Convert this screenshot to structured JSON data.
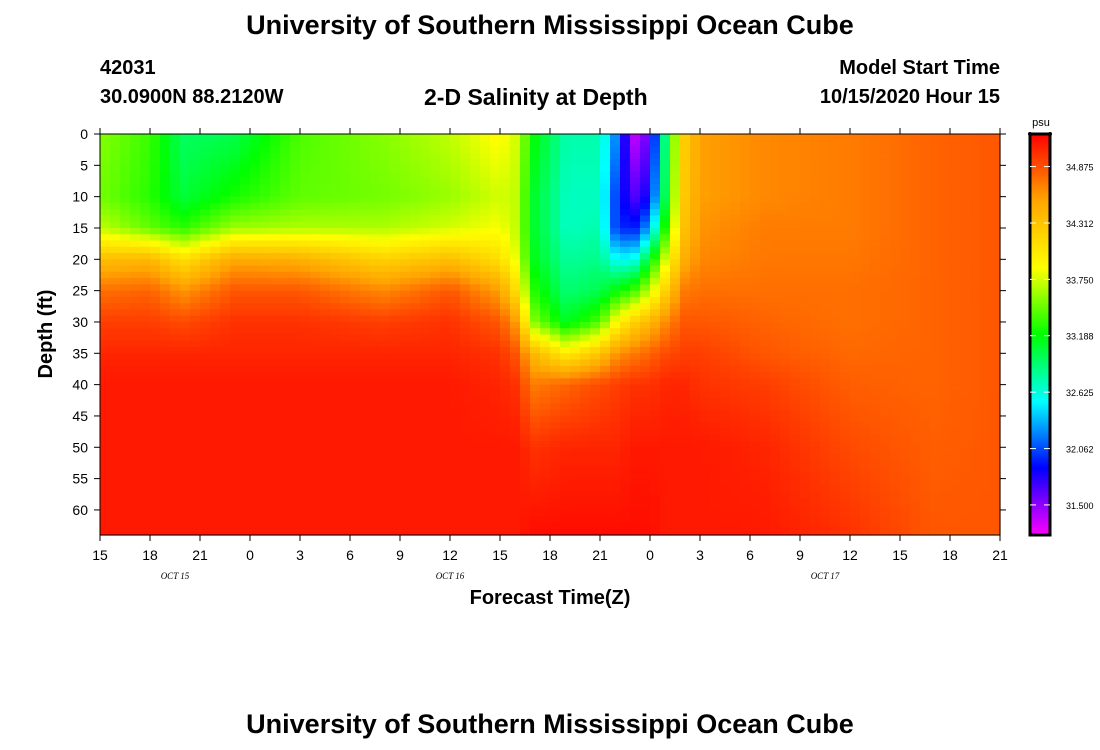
{
  "header": {
    "title": "University of Southern Mississippi Ocean Cube",
    "station_id": "42031",
    "station_coords": "30.0900N 88.2120W",
    "model_label": "Model Start Time",
    "model_time": "10/15/2020 Hour 15"
  },
  "footer": {
    "title": "University of Southern Mississippi Ocean Cube"
  },
  "colors": {
    "palette": [
      "#ff00ff",
      "#0000ff",
      "#00ffff",
      "#00ff00",
      "#ffff00",
      "#ffa500",
      "#ff0000"
    ],
    "frame": "#000000"
  },
  "chart_data": {
    "type": "heatmap",
    "title": "2-D Salinity at Depth",
    "xlabel": "Forecast Time(Z)",
    "ylabel": "Depth (ft)",
    "x_ticks": [
      "15",
      "18",
      "21",
      "0",
      "3",
      "6",
      "9",
      "12",
      "15",
      "18",
      "21",
      "0",
      "3",
      "6",
      "9",
      "12",
      "15",
      "18",
      "21"
    ],
    "date_labels": [
      {
        "label": "OCT 15",
        "tick_index": 1.5
      },
      {
        "label": "OCT 16",
        "tick_index": 7
      },
      {
        "label": "OCT 17",
        "tick_index": 14.5
      }
    ],
    "y_ticks": [
      0,
      5,
      10,
      15,
      20,
      25,
      30,
      35,
      40,
      45,
      50,
      55,
      60
    ],
    "ylim": [
      0,
      64
    ],
    "x_range_hours": [
      0,
      54
    ],
    "colorbar": {
      "unit": "psu",
      "range": [
        31.2,
        35.2
      ],
      "ticks": [
        "34.875",
        "34.312",
        "33.750",
        "33.188",
        "32.625",
        "32.062",
        "31.500"
      ]
    },
    "depths": [
      0,
      10,
      15,
      20,
      25,
      30,
      35,
      40,
      50,
      64
    ],
    "columns": [
      {
        "hour": 0,
        "values": [
          33.55,
          33.5,
          33.7,
          34.35,
          34.75,
          34.95,
          35.05,
          35.1,
          35.1,
          35.1
        ]
      },
      {
        "hour": 3,
        "values": [
          33.35,
          33.3,
          33.45,
          34.4,
          34.8,
          34.95,
          35.05,
          35.1,
          35.1,
          35.1
        ]
      },
      {
        "hour": 5,
        "values": [
          32.95,
          33.05,
          33.3,
          34.1,
          34.6,
          34.9,
          35.05,
          35.1,
          35.1,
          35.1
        ]
      },
      {
        "hour": 8,
        "values": [
          33.0,
          33.25,
          33.6,
          34.5,
          34.85,
          35.0,
          35.05,
          35.1,
          35.1,
          35.1
        ]
      },
      {
        "hour": 12,
        "values": [
          33.4,
          33.45,
          33.65,
          34.45,
          34.85,
          35.0,
          35.05,
          35.1,
          35.1,
          35.1
        ]
      },
      {
        "hour": 17,
        "values": [
          33.55,
          33.5,
          33.65,
          34.2,
          34.65,
          34.95,
          35.05,
          35.1,
          35.1,
          35.1
        ]
      },
      {
        "hour": 21,
        "values": [
          33.7,
          33.6,
          33.75,
          34.35,
          34.85,
          35.0,
          35.05,
          35.1,
          35.1,
          35.1
        ]
      },
      {
        "hour": 24,
        "values": [
          33.9,
          33.75,
          33.85,
          34.1,
          34.55,
          34.85,
          35.0,
          35.05,
          35.1,
          35.1
        ]
      },
      {
        "hour": 25,
        "values": [
          33.75,
          33.7,
          33.7,
          33.8,
          34.1,
          34.55,
          34.85,
          35.0,
          35.1,
          35.1
        ]
      },
      {
        "hour": 26,
        "values": [
          33.2,
          33.1,
          33.1,
          33.15,
          33.3,
          33.55,
          34.4,
          34.7,
          35.0,
          35.15
        ]
      },
      {
        "hour": 28,
        "values": [
          32.75,
          32.7,
          32.7,
          32.8,
          32.9,
          33.1,
          34.0,
          34.8,
          35.05,
          35.15
        ]
      },
      {
        "hour": 30,
        "values": [
          32.75,
          32.7,
          32.75,
          32.85,
          33.0,
          33.4,
          34.3,
          34.9,
          35.05,
          35.15
        ]
      },
      {
        "hour": 31,
        "values": [
          32.2,
          32.0,
          32.0,
          32.55,
          33.2,
          33.9,
          34.6,
          34.95,
          35.05,
          35.15
        ]
      },
      {
        "hour": 32,
        "values": [
          31.35,
          31.65,
          31.9,
          32.55,
          33.35,
          34.2,
          34.7,
          35.0,
          35.1,
          35.15
        ]
      },
      {
        "hour": 33,
        "values": [
          31.6,
          31.85,
          32.3,
          33.1,
          33.7,
          34.4,
          34.8,
          35.0,
          35.1,
          35.15
        ]
      },
      {
        "hour": 34,
        "values": [
          33.0,
          33.1,
          33.35,
          33.8,
          34.25,
          34.65,
          34.9,
          35.05,
          35.1,
          35.1
        ]
      },
      {
        "hour": 35,
        "values": [
          34.2,
          34.25,
          34.3,
          34.45,
          34.7,
          34.85,
          34.95,
          35.05,
          35.1,
          35.1
        ]
      },
      {
        "hour": 36,
        "values": [
          34.55,
          34.55,
          34.6,
          34.65,
          34.75,
          34.85,
          34.95,
          35.0,
          35.1,
          35.1
        ]
      },
      {
        "hour": 40,
        "values": [
          34.65,
          34.65,
          34.7,
          34.72,
          34.75,
          34.8,
          34.85,
          34.95,
          35.05,
          35.1
        ]
      },
      {
        "hour": 45,
        "values": [
          34.7,
          34.7,
          34.7,
          34.72,
          34.75,
          34.75,
          34.78,
          34.82,
          34.9,
          35.0
        ]
      },
      {
        "hour": 50,
        "values": [
          34.8,
          34.8,
          34.8,
          34.8,
          34.8,
          34.8,
          34.8,
          34.8,
          34.82,
          34.85
        ]
      },
      {
        "hour": 54,
        "values": [
          34.85,
          34.85,
          34.85,
          34.85,
          34.85,
          34.85,
          34.85,
          34.85,
          34.85,
          34.85
        ]
      }
    ]
  }
}
